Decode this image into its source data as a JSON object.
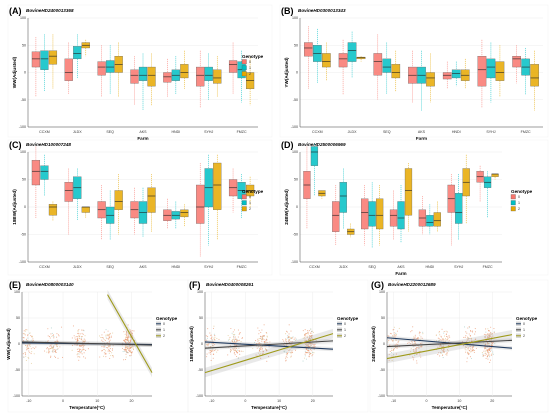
{
  "legend": {
    "title": "Genotype",
    "items": [
      "0",
      "1",
      "2"
    ]
  },
  "colors": {
    "g0": "#F8766D",
    "g1": "#00BFC4",
    "g2": "#E6A800",
    "s0": "#1f3a5f",
    "s1": "#444444",
    "s2": "#9e9a1a"
  },
  "chart_data": [
    {
      "type": "box",
      "panel": "(A)",
      "title": "BovineHD2400013368",
      "xlabel": "Farm",
      "ylabel": "WW(Adjusted)",
      "ylim": [
        -100,
        100
      ],
      "yticks": [
        -100,
        -50,
        0,
        50,
        100
      ],
      "categories": [
        "CCXM",
        "JLDX",
        "SEQ",
        "AKS",
        "HNDI",
        "SYHJ",
        "FMZC"
      ],
      "series": [
        {
          "name": "0",
          "boxes": [
            [
              -45,
              10,
              25,
              38,
              65
            ],
            [
              -40,
              -15,
              0,
              25,
              55
            ],
            [
              -45,
              -5,
              10,
              20,
              50
            ],
            [
              -60,
              -20,
              -5,
              5,
              30
            ],
            [
              -45,
              -18,
              -8,
              0,
              25
            ],
            [
              -65,
              -25,
              -5,
              10,
              40
            ],
            [
              -40,
              0,
              15,
              22,
              55
            ]
          ]
        },
        {
          "name": "1",
          "boxes": [
            [
              -35,
              5,
              25,
              40,
              70
            ],
            [
              -10,
              25,
              35,
              48,
              70
            ],
            [
              -40,
              0,
              10,
              22,
              50
            ],
            [
              -70,
              -15,
              -5,
              10,
              35
            ],
            [
              -40,
              -15,
              -5,
              5,
              30
            ],
            [
              -50,
              -15,
              -5,
              10,
              35
            ],
            [
              -55,
              -10,
              5,
              20,
              40
            ]
          ]
        },
        {
          "name": "2",
          "boxes": [
            [
              -30,
              15,
              30,
              40,
              70
            ],
            [
              30,
              45,
              50,
              55,
              60
            ],
            [
              -45,
              0,
              15,
              30,
              55
            ],
            [
              -60,
              -25,
              -5,
              10,
              35
            ],
            [
              -30,
              -10,
              0,
              15,
              40
            ],
            [
              -45,
              -20,
              -10,
              5,
              30
            ],
            [
              -60,
              -30,
              -15,
              0,
              30
            ]
          ]
        }
      ]
    },
    {
      "type": "box",
      "panel": "(B)",
      "title": "BovineHD0300013343",
      "xlabel": "Farm",
      "ylabel": "YW(Adjusted)",
      "ylim": [
        -100,
        100
      ],
      "yticks": [
        -100,
        -50,
        0,
        50,
        100
      ],
      "categories": [
        "CCXM",
        "JLDX",
        "SEQ",
        "AKS",
        "HNDI",
        "SYHJ",
        "FMZC"
      ],
      "series": [
        {
          "name": "0",
          "boxes": [
            [
              -30,
              30,
              45,
              55,
              85
            ],
            [
              -40,
              10,
              25,
              35,
              60
            ],
            [
              -50,
              -5,
              20,
              35,
              70
            ],
            [
              -55,
              -20,
              -5,
              10,
              40
            ],
            [
              -30,
              -12,
              -5,
              0,
              20
            ],
            [
              -65,
              -25,
              5,
              30,
              60
            ],
            [
              -20,
              10,
              25,
              30,
              50
            ]
          ]
        },
        {
          "name": "1",
          "boxes": [
            [
              -20,
              20,
              35,
              50,
              80
            ],
            [
              -10,
              20,
              40,
              55,
              75
            ],
            [
              -40,
              0,
              10,
              25,
              55
            ],
            [
              -70,
              -20,
              -5,
              10,
              40
            ],
            [
              -25,
              -10,
              -2,
              5,
              20
            ],
            [
              -55,
              -10,
              10,
              25,
              55
            ],
            [
              -40,
              -5,
              10,
              25,
              45
            ]
          ]
        },
        {
          "name": "2",
          "boxes": [
            [
              -15,
              10,
              20,
              35,
              55
            ],
            [
              20,
              25,
              28,
              28,
              30
            ],
            [
              -35,
              -10,
              0,
              15,
              40
            ],
            [
              -55,
              -25,
              -10,
              0,
              35
            ],
            [
              -30,
              -15,
              -5,
              5,
              25
            ],
            [
              -45,
              -15,
              0,
              20,
              50
            ],
            [
              -70,
              -25,
              -10,
              15,
              40
            ]
          ]
        }
      ]
    },
    {
      "type": "box",
      "panel": "(C)",
      "title": "BovineHD100007248",
      "xlabel": "",
      "ylabel": "18BW(Adjusted)",
      "ylim": [
        -100,
        100
      ],
      "yticks": [
        -100,
        -50,
        0,
        50,
        100
      ],
      "categories": [
        "CCXM",
        "JLDX",
        "SEQ",
        "AKS",
        "HNDI",
        "SYHJ",
        "FMZC"
      ],
      "series": [
        {
          "name": "0",
          "boxes": [
            [
              -20,
              40,
              65,
              85,
              110
            ],
            [
              -50,
              10,
              30,
              45,
              70
            ],
            [
              -60,
              -20,
              -5,
              10,
              40
            ],
            [
              -50,
              -20,
              -5,
              10,
              35
            ],
            [
              -40,
              -25,
              -15,
              -5,
              15
            ],
            [
              -90,
              -30,
              0,
              40,
              80
            ],
            [
              -10,
              20,
              35,
              50,
              70
            ]
          ]
        },
        {
          "name": "1",
          "boxes": [
            [
              20,
              50,
              65,
              75,
              95
            ],
            [
              -25,
              15,
              35,
              55,
              70
            ],
            [
              -60,
              -30,
              -15,
              0,
              30
            ],
            [
              -55,
              -30,
              -10,
              10,
              35
            ],
            [
              -40,
              -22,
              -15,
              -8,
              10
            ],
            [
              -70,
              0,
              35,
              70,
              95
            ],
            [
              -20,
              15,
              30,
              45,
              60
            ]
          ]
        },
        {
          "name": "2",
          "boxes": [
            [
              -25,
              -15,
              0,
              5,
              10
            ],
            [
              -20,
              -10,
              0,
              0,
              0
            ],
            [
              -50,
              -5,
              10,
              30,
              60
            ],
            [
              -45,
              -10,
              20,
              35,
              60
            ],
            [
              -35,
              -18,
              -10,
              -5,
              5
            ],
            [
              -60,
              -5,
              40,
              80,
              95
            ],
            [
              0,
              20,
              30,
              40,
              55
            ]
          ]
        }
      ]
    },
    {
      "type": "box",
      "panel": "(D)",
      "title": "BovineHD2500006969",
      "xlabel": "Farm",
      "ylabel": "24BW(Adjusted)",
      "ylim": [
        -100,
        100
      ],
      "yticks": [
        -100,
        -50,
        0,
        50,
        100
      ],
      "categories": [
        "CCXM",
        "JLDX",
        "SEQ",
        "AKS",
        "HNDI",
        "SYHJ",
        "FMZC"
      ],
      "series": [
        {
          "name": "0",
          "boxes": [
            [
              -40,
              15,
              40,
              65,
              110
            ],
            [
              -70,
              -45,
              -15,
              10,
              40
            ],
            [
              -70,
              -40,
              -10,
              15,
              40
            ],
            [
              -60,
              -35,
              -15,
              -5,
              30
            ],
            [
              -50,
              -35,
              -20,
              -5,
              20
            ],
            [
              -70,
              -10,
              15,
              40,
              60
            ],
            [
              10,
              45,
              55,
              65,
              75
            ]
          ]
        },
        {
          "name": "1",
          "boxes": [
            [
              20,
              75,
              100,
              110,
              115
            ],
            [
              -40,
              -10,
              20,
              45,
              70
            ],
            [
              -75,
              -35,
              -15,
              10,
              45
            ],
            [
              -65,
              -40,
              -20,
              10,
              40
            ],
            [
              -50,
              -35,
              -28,
              -15,
              5
            ],
            [
              -60,
              -30,
              -10,
              25,
              60
            ],
            [
              -20,
              35,
              45,
              55,
              65
            ]
          ]
        },
        {
          "name": "2",
          "boxes": [
            [
              15,
              20,
              25,
              30,
              30
            ],
            [
              -55,
              -50,
              -45,
              -40,
              -30
            ],
            [
              -70,
              -40,
              -15,
              15,
              40
            ],
            [
              -45,
              -15,
              30,
              70,
              80
            ],
            [
              -45,
              -35,
              -25,
              -10,
              10
            ],
            [
              -30,
              20,
              45,
              70,
              95
            ],
            [
              50,
              55,
              60,
              60,
              60
            ]
          ]
        }
      ]
    },
    {
      "type": "scatter",
      "panel": "(E)",
      "title": "BovineHD0800003140",
      "xlabel": "Temperature(°C)",
      "ylabel": "WW(Adjusted)",
      "xlim": [
        -12,
        26
      ],
      "ylim": [
        -100,
        100
      ],
      "xticks": [
        -10,
        0,
        10,
        20
      ],
      "yticks": [
        -100,
        -50,
        0,
        50,
        100
      ],
      "series": [
        {
          "name": "0",
          "line": [
            [
              -12,
              2
            ],
            [
              26,
              -1
            ]
          ]
        },
        {
          "name": "1",
          "line": [
            [
              -12,
              4
            ],
            [
              26,
              -2
            ]
          ]
        },
        {
          "name": "2",
          "line": [
            [
              13,
              95
            ],
            [
              26,
              -55
            ]
          ]
        }
      ]
    },
    {
      "type": "scatter",
      "panel": "(F)",
      "title": "BovineHD0400008261",
      "xlabel": "Temperature(°C)",
      "ylabel": "18BW(Adjusted)",
      "xlim": [
        -12,
        26
      ],
      "ylim": [
        -100,
        100
      ],
      "xticks": [
        -10,
        0,
        10,
        20
      ],
      "yticks": [
        -100,
        -50,
        0,
        50,
        100
      ],
      "series": [
        {
          "name": "0",
          "line": [
            [
              -12,
              4
            ],
            [
              26,
              -10
            ]
          ]
        },
        {
          "name": "1",
          "line": [
            [
              -12,
              -8
            ],
            [
              26,
              6
            ]
          ]
        },
        {
          "name": "2",
          "line": [
            [
              -12,
              -55
            ],
            [
              26,
              20
            ]
          ]
        }
      ]
    },
    {
      "type": "scatter",
      "panel": "(G)",
      "title": "BovineHD2200012689",
      "xlabel": "Temperature(°C)",
      "ylabel": "24BW(Adjusted)",
      "xlim": [
        -12,
        26
      ],
      "ylim": [
        -100,
        100
      ],
      "xticks": [
        -10,
        0,
        10,
        20
      ],
      "yticks": [
        -100,
        -50,
        0,
        50,
        100
      ],
      "series": [
        {
          "name": "0",
          "line": [
            [
              -12,
              12
            ],
            [
              26,
              -8
            ]
          ]
        },
        {
          "name": "1",
          "line": [
            [
              -12,
              -5
            ],
            [
              26,
              7
            ]
          ]
        },
        {
          "name": "2",
          "line": [
            [
              -12,
              -28
            ],
            [
              26,
              18
            ]
          ]
        }
      ]
    }
  ]
}
